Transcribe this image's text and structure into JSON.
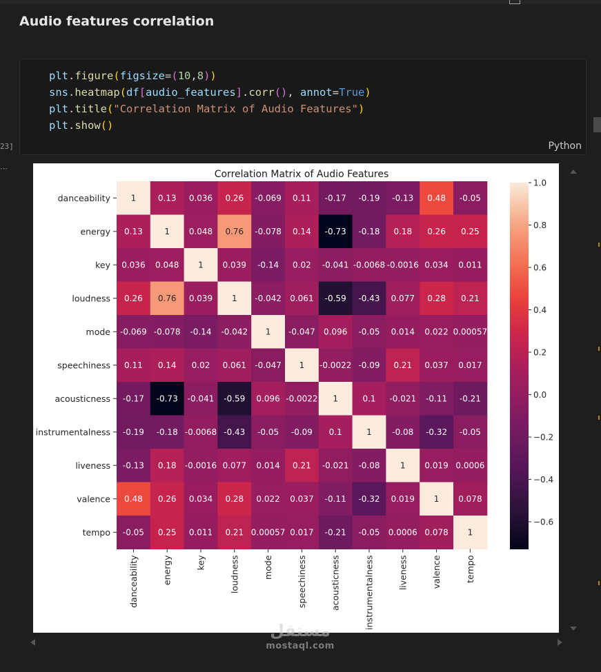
{
  "heading": "Audio features correlation",
  "cell": {
    "execution_count": "23]",
    "language": "Python",
    "code": {
      "l1": {
        "obj": "plt",
        "fn": "figure",
        "param": "figsize",
        "n1": "10",
        "n2": "8"
      },
      "l2": {
        "obj": "sns",
        "fn": "heatmap",
        "df": "df",
        "arg": "audio_features",
        "method": "corr",
        "param": "annot",
        "val": "True"
      },
      "l3": {
        "obj": "plt",
        "fn": "title",
        "str": "\"Correlation Matrix of Audio Features\""
      },
      "l4": {
        "obj": "plt",
        "fn": "show"
      }
    }
  },
  "watermark": {
    "arabic": "مستقل",
    "latin": "mostaql.com"
  },
  "colors": {
    "background": "#1e1e1e",
    "cell_bg": "#191919",
    "output_bg": "#ffffff"
  },
  "chart_data": {
    "type": "heatmap",
    "title": "Correlation Matrix of Audio Features",
    "categories": [
      "danceability",
      "energy",
      "key",
      "loudness",
      "mode",
      "speechiness",
      "acousticness",
      "instrumentalness",
      "liveness",
      "valence",
      "tempo"
    ],
    "labels": [
      [
        "1",
        "0.13",
        "0.036",
        "0.26",
        "-0.069",
        "0.11",
        "-0.17",
        "-0.19",
        "-0.13",
        "0.48",
        "-0.05"
      ],
      [
        "0.13",
        "1",
        "0.048",
        "0.76",
        "-0.078",
        "0.14",
        "-0.73",
        "-0.18",
        "0.18",
        "0.26",
        "0.25"
      ],
      [
        "0.036",
        "0.048",
        "1",
        "0.039",
        "-0.14",
        "0.02",
        "-0.041",
        "-0.0068",
        "-0.0016",
        "0.034",
        "0.011"
      ],
      [
        "0.26",
        "0.76",
        "0.039",
        "1",
        "-0.042",
        "0.061",
        "-0.59",
        "-0.43",
        "0.077",
        "0.28",
        "0.21"
      ],
      [
        "-0.069",
        "-0.078",
        "-0.14",
        "-0.042",
        "1",
        "-0.047",
        "0.096",
        "-0.05",
        "0.014",
        "0.022",
        "0.00057"
      ],
      [
        "0.11",
        "0.14",
        "0.02",
        "0.061",
        "-0.047",
        "1",
        "-0.0022",
        "-0.09",
        "0.21",
        "0.037",
        "0.017"
      ],
      [
        "-0.17",
        "-0.73",
        "-0.041",
        "-0.59",
        "0.096",
        "-0.0022",
        "1",
        "0.1",
        "-0.021",
        "-0.11",
        "-0.21"
      ],
      [
        "-0.19",
        "-0.18",
        "-0.0068",
        "-0.43",
        "-0.05",
        "-0.09",
        "0.1",
        "1",
        "-0.08",
        "-0.32",
        "-0.05"
      ],
      [
        "-0.13",
        "0.18",
        "-0.0016",
        "0.077",
        "0.014",
        "0.21",
        "-0.021",
        "-0.08",
        "1",
        "0.019",
        "0.0006"
      ],
      [
        "0.48",
        "0.26",
        "0.034",
        "0.28",
        "0.022",
        "0.037",
        "-0.11",
        "-0.32",
        "0.019",
        "1",
        "0.078"
      ],
      [
        "-0.05",
        "0.25",
        "0.011",
        "0.21",
        "0.00057",
        "0.017",
        "-0.21",
        "-0.05",
        "0.0006",
        "0.078",
        "1"
      ]
    ],
    "colorbar": {
      "min": -0.73,
      "max": 1.0,
      "ticks": [
        1.0,
        0.8,
        0.6,
        0.4,
        0.2,
        0.0,
        -0.2,
        -0.4,
        -0.6
      ],
      "tick_labels": [
        "1.0",
        "0.8",
        "0.6",
        "0.4",
        "0.2",
        "0.0",
        "−0.2",
        "−0.4",
        "−0.6"
      ]
    },
    "colormap": "rocket"
  }
}
